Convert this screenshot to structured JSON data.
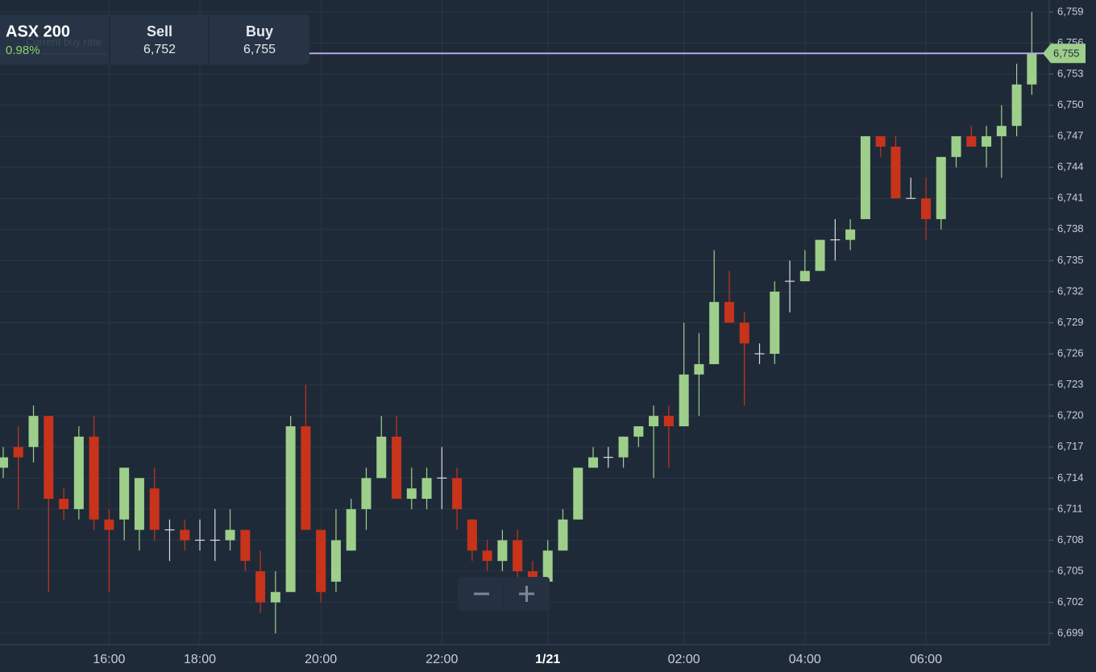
{
  "widget": {
    "name": "ASX 200",
    "change": "0.98%",
    "hint": "Current buy rate",
    "sell_label": "Sell",
    "sell": "6,752",
    "buy_label": "Buy",
    "buy": "6,755"
  },
  "chart_data": {
    "type": "candlestick",
    "categories": [
      null,
      null,
      null,
      null,
      null,
      null,
      null,
      "16:00",
      null,
      null,
      null,
      null,
      null,
      "18:00",
      null,
      null,
      null,
      null,
      null,
      null,
      null,
      "20:00",
      null,
      null,
      null,
      null,
      null,
      null,
      null,
      "22:00",
      null,
      null,
      null,
      null,
      null,
      null,
      "1/21",
      null,
      null,
      null,
      null,
      null,
      null,
      null,
      null,
      "02:00",
      null,
      null,
      null,
      null,
      null,
      null,
      null,
      "04:00",
      null,
      null,
      null,
      null,
      null,
      null,
      null,
      "06:00",
      null,
      null,
      null,
      null,
      null,
      null,
      null
    ],
    "open": [
      6715,
      6717,
      6717,
      6720,
      6712,
      6711,
      6718,
      6710,
      6710,
      6709,
      6713,
      6709,
      6709,
      6708,
      6708,
      6708,
      6709,
      6705,
      6702,
      6703,
      6719,
      6709,
      6704,
      6707,
      6711,
      6714,
      6718,
      6712,
      6712,
      6714,
      6714,
      6710,
      6707,
      6706,
      6708,
      6705,
      6704,
      6707,
      6710,
      6715,
      6716,
      6716,
      6718,
      6719,
      6720,
      6719,
      6724,
      6725,
      6731,
      6729,
      6726,
      6726,
      6733,
      6733,
      6734,
      6737,
      6737,
      6739,
      6747,
      6746,
      6741,
      6741,
      6739,
      6745,
      6747,
      6746,
      6747,
      6748,
      6752
    ],
    "high": [
      6717,
      6719,
      6721,
      6720,
      6713,
      6719,
      6720,
      6711,
      6715,
      6714,
      6715,
      6710,
      6710,
      6710,
      6711,
      6711,
      6709,
      6707,
      6705,
      6720,
      6723,
      6709,
      6711,
      6712,
      6715,
      6720,
      6720,
      6715,
      6715,
      6717,
      6715,
      6710,
      6708,
      6709,
      6709,
      6706,
      6708,
      6711,
      6715,
      6717,
      6717,
      6718,
      6719,
      6721,
      6721,
      6729,
      6728,
      6736,
      6734,
      6730,
      6727,
      6733,
      6735,
      6736,
      6737,
      6739,
      6739,
      6747,
      6747,
      6747,
      6743,
      6743,
      6745,
      6747,
      6748,
      6748,
      6750,
      6754,
      6759
    ],
    "low": [
      6714,
      6711,
      6715.5,
      6703,
      6710,
      6710,
      6709,
      6703,
      6708,
      6707,
      6708,
      6706,
      6707,
      6707,
      6706,
      6707,
      6705,
      6701,
      6699,
      6703,
      6709,
      6702,
      6703,
      6707,
      6709,
      6714,
      6712,
      6711,
      6711,
      6711,
      6709,
      6706,
      6705,
      6705,
      6704,
      6704,
      6704,
      6707,
      6710,
      6715,
      6715,
      6715,
      6717,
      6714,
      6715,
      6719,
      6720,
      6725,
      6729,
      6721,
      6725,
      6725,
      6730,
      6733,
      6734,
      6735,
      6736,
      6739,
      6745,
      6741,
      6741,
      6737,
      6738,
      6744,
      6746,
      6744,
      6743,
      6747,
      6751
    ],
    "close": [
      6716,
      6716,
      6720,
      6712,
      6711,
      6718,
      6710,
      6709,
      6715,
      6714,
      6709,
      6709,
      6708,
      6708,
      6708,
      6709,
      6706,
      6702,
      6703,
      6719,
      6709,
      6703,
      6708,
      6711,
      6714,
      6718,
      6712,
      6713,
      6714,
      6714,
      6711,
      6707,
      6706,
      6708,
      6705,
      6704,
      6707,
      6710,
      6715,
      6716,
      6716,
      6718,
      6719,
      6720,
      6719,
      6724,
      6725,
      6731,
      6729,
      6727,
      6726,
      6732,
      6733,
      6734,
      6737,
      6737,
      6738,
      6747,
      6746,
      6741,
      6741,
      6739,
      6745,
      6747,
      6746,
      6747,
      6748,
      6752,
      6755
    ],
    "up_color": "#9dcf8b",
    "down_color": "#c8331b",
    "ylim": [
      6698,
      6760
    ],
    "yticks": [
      {
        "value": 6699,
        "label": "6,699"
      },
      {
        "value": 6702,
        "label": "6,702"
      },
      {
        "value": 6705,
        "label": "6,705"
      },
      {
        "value": 6708,
        "label": "6,708"
      },
      {
        "value": 6711,
        "label": "6,711"
      },
      {
        "value": 6714,
        "label": "6,714"
      },
      {
        "value": 6717,
        "label": "6,717"
      },
      {
        "value": 6720,
        "label": "6,720"
      },
      {
        "value": 6723,
        "label": "6,723"
      },
      {
        "value": 6726,
        "label": "6,726"
      },
      {
        "value": 6729,
        "label": "6,729"
      },
      {
        "value": 6732,
        "label": "6,732"
      },
      {
        "value": 6735,
        "label": "6,735"
      },
      {
        "value": 6738,
        "label": "6,738"
      },
      {
        "value": 6741,
        "label": "6,741"
      },
      {
        "value": 6744,
        "label": "6,744"
      },
      {
        "value": 6747,
        "label": "6,747"
      },
      {
        "value": 6750,
        "label": "6,750"
      },
      {
        "value": 6753,
        "label": "6,753"
      },
      {
        "value": 6756,
        "label": "6,756"
      },
      {
        "value": 6759,
        "label": "6,759"
      }
    ],
    "grid": true,
    "current_price": {
      "value": 6755,
      "label": "6,755",
      "color": "#b8a8e0"
    }
  }
}
